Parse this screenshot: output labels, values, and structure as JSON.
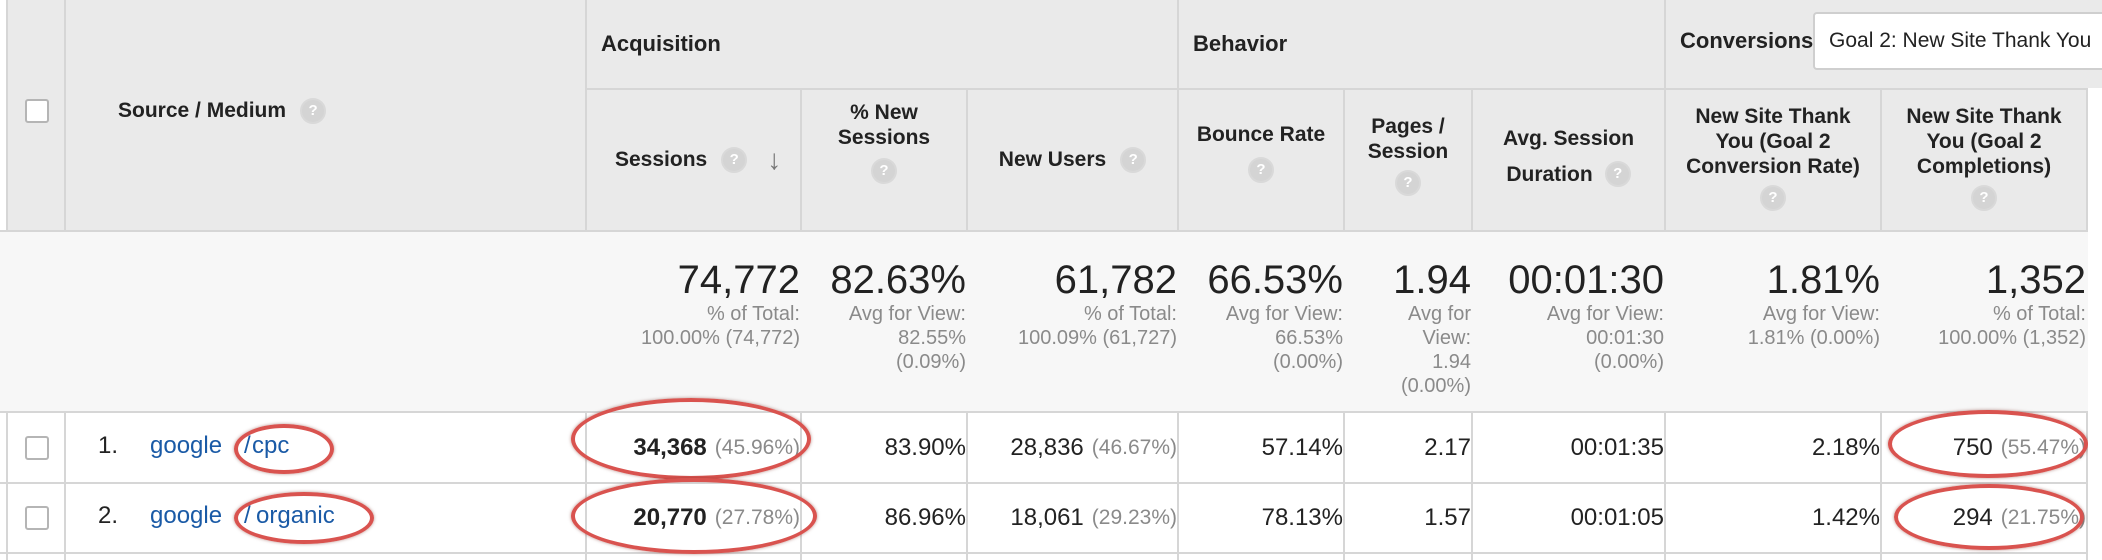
{
  "groups": {
    "acquisition": "Acquisition",
    "behavior": "Behavior",
    "conversions": "Conversions",
    "goal_select": "Goal 2: New Site Thank You"
  },
  "columns": {
    "source_medium": "Source / Medium",
    "sessions": "Sessions",
    "new_sessions": "% New Sessions",
    "new_users": "New Users",
    "bounce_rate": "Bounce Rate",
    "pages_session": "Pages / Session",
    "avg_duration_1": "Avg. Session",
    "avg_duration_2": "Duration",
    "conv_rate": "New Site Thank You (Goal 2 Conversion Rate)",
    "completions": "New Site Thank You (Goal 2 Completions)"
  },
  "totals": {
    "sessions": {
      "value": "74,772",
      "sub1": "% of Total:",
      "sub2": "100.00% (74,772)"
    },
    "new_sessions": {
      "value": "82.63%",
      "sub1": "Avg for View:",
      "sub2": "82.55%",
      "sub3": "(0.09%)"
    },
    "new_users": {
      "value": "61,782",
      "sub1": "% of Total:",
      "sub2": "100.09% (61,727)"
    },
    "bounce_rate": {
      "value": "66.53%",
      "sub1": "Avg for View:",
      "sub2": "66.53%",
      "sub3": "(0.00%)"
    },
    "pages_session": {
      "value": "1.94",
      "sub1": "Avg for",
      "sub2": "View:",
      "sub3": "1.94",
      "sub4": "(0.00%)"
    },
    "avg_duration": {
      "value": "00:01:30",
      "sub1": "Avg for View:",
      "sub2": "00:01:30",
      "sub3": "(0.00%)"
    },
    "conv_rate": {
      "value": "1.81%",
      "sub1": "Avg for View:",
      "sub2": "1.81% (0.00%)"
    },
    "completions": {
      "value": "1,352",
      "sub1": "% of Total:",
      "sub2": "100.00% (1,352)"
    }
  },
  "rows": [
    {
      "index": "1.",
      "source": "google",
      "sep": "/",
      "medium": "cpc",
      "sessions": "34,368",
      "sessions_pct": "(45.96%)",
      "new_sessions": "83.90%",
      "new_users": "28,836",
      "new_users_pct": "(46.67%)",
      "bounce_rate": "57.14%",
      "pages_session": "2.17",
      "avg_duration": "00:01:35",
      "conv_rate": "2.18%",
      "completions": "750",
      "completions_pct": "(55.47%)"
    },
    {
      "index": "2.",
      "source": "google",
      "sep": "/",
      "medium": "organic",
      "sessions": "20,770",
      "sessions_pct": "(27.78%)",
      "new_sessions": "86.96%",
      "new_users": "18,061",
      "new_users_pct": "(29.23%)",
      "bounce_rate": "78.13%",
      "pages_session": "1.57",
      "avg_duration": "00:01:05",
      "conv_rate": "1.42%",
      "completions": "294",
      "completions_pct": "(21.75%)"
    }
  ],
  "icons": {
    "help": "?",
    "sort": "↓"
  },
  "colors": {
    "annotation_ring": "#d9534f",
    "link": "#1a5aa6",
    "header_bg": "#eaeaea"
  }
}
